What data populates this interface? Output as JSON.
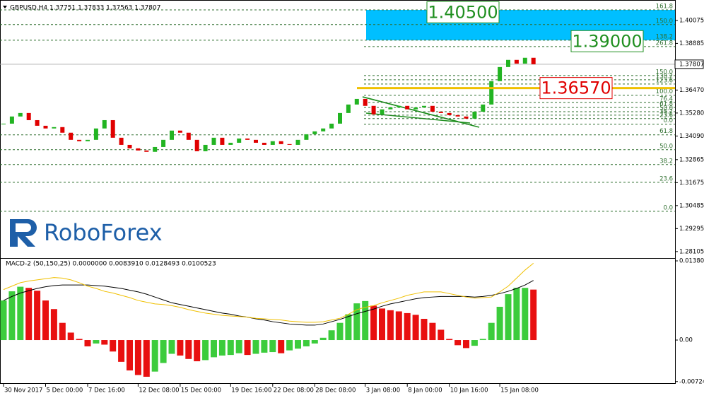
{
  "header": "GBPUSD,H4  1.37751 1.37833 1.37563 1.37807",
  "logo": "RoboForex",
  "chart_data": [
    {
      "type": "candlestick",
      "categories": [
        "30 Nov 2017",
        null,
        null,
        null,
        null,
        "5 Dec 00:00",
        null,
        null,
        null,
        null,
        "7 Dec 16:00",
        null,
        null,
        null,
        null,
        null,
        "12 Dec 08:00",
        null,
        null,
        null,
        null,
        "15 Dec 00:00",
        null,
        null,
        null,
        null,
        null,
        "19 Dec 16:00",
        null,
        null,
        null,
        null,
        "22 Dec 08:00",
        null,
        null,
        null,
        null,
        "28 Dec 08:00",
        null,
        null,
        null,
        null,
        null,
        "3 Jan 08:00",
        null,
        null,
        null,
        null,
        "8 Jan 00:00",
        null,
        null,
        null,
        null,
        "10 Jan 16:00",
        null,
        null,
        null,
        null,
        null,
        "15 Jan 08:00",
        null,
        null,
        null,
        null
      ],
      "values": [
        1.3473,
        1.351,
        1.3528,
        1.3491,
        1.3462,
        1.3448,
        1.3455,
        1.3426,
        1.3389,
        1.3382,
        1.3389,
        1.3448,
        1.3491,
        1.34,
        1.3363,
        1.3345,
        1.3334,
        1.3327,
        1.3352,
        1.3389,
        1.3437,
        1.3426,
        1.3389,
        1.333,
        1.3363,
        1.34,
        1.3363,
        1.3374,
        1.3396,
        1.3389,
        1.3374,
        1.3363,
        1.3382,
        1.3367,
        1.3363,
        1.3389,
        1.3418,
        1.3433,
        1.3448,
        1.3473,
        1.3528,
        1.3572,
        1.3601,
        1.3565,
        1.3521,
        1.3547,
        1.3557,
        1.3565,
        1.3547,
        1.3557,
        1.3565,
        1.3535,
        1.3528,
        1.3517,
        1.351,
        1.3499,
        1.3535,
        1.3572,
        1.3693,
        1.3766,
        1.3803,
        1.3784,
        1.3814,
        1.37807
      ],
      "up_color": "#22b422",
      "down_color": "#e00000",
      "ylim": [
        1.2777,
        1.4095
      ],
      "yticks": [
        1.40075,
        1.38885,
        {
          "value": 1.3647,
          "label": "1.36470"
        },
        {
          "value": 1.3528,
          "label": "1.35280"
        },
        {
          "value": 1.3409,
          "label": "1.34090"
        },
        1.32865,
        1.31675,
        1.30485,
        1.29295,
        1.28105
      ],
      "last_price": {
        "value": 1.37807,
        "label": "1.37807"
      },
      "fib_color": "#2f6f2f",
      "fib_levels_full": [
        {
          "label": "161.8",
          "value": 1.4062
        },
        {
          "label": "150.0",
          "value": 1.3986
        },
        {
          "label": "138.2",
          "value": 1.3905
        },
        {
          "label": "61.8",
          "value": 1.3415
        },
        {
          "label": "50.0",
          "value": 1.3338
        },
        {
          "label": "38.2",
          "value": 1.3261
        },
        {
          "label": "23.6",
          "value": 1.3169
        },
        {
          "label": "0.0",
          "value": 1.3019
        }
      ],
      "fib_levels_recent": [
        {
          "label": "261.8",
          "value": 1.3872
        },
        {
          "label": "150.0",
          "value": 1.3722
        },
        {
          "label": "138.2",
          "value": 1.37
        },
        {
          "label": "123.6",
          "value": 1.3678
        },
        {
          "label": "100.0",
          "value": 1.362
        },
        {
          "label": "76.4",
          "value": 1.3583
        },
        {
          "label": "61.8",
          "value": 1.3557
        },
        {
          "label": "50.0",
          "value": 1.3535
        },
        {
          "label": "38.2",
          "value": 1.3517
        },
        {
          "label": "23.6",
          "value": 1.3499
        },
        {
          "label": "0.0",
          "value": 1.347
        }
      ],
      "target_zone": {
        "color": "#00bfff",
        "values": [
          1.3905,
          1.4062
        ]
      },
      "targets": [
        {
          "value": 1.405,
          "label": "1.40500",
          "color": "#1f8f1f"
        },
        {
          "value": 1.39,
          "label": "1.39000",
          "color": "#1f8f1f"
        },
        {
          "value": 1.3657,
          "label": "1.36570",
          "color": "#e00000",
          "line_color": "#f0c000"
        }
      ]
    },
    {
      "type": "macd",
      "title": "MACD-2 (50,150,25) 0.0000000 0.0083910 0.0128493 0.0100523",
      "histogram": {
        "up_color": "#3ccc3c",
        "down_color": "#e81010",
        "values": [
          0.0069,
          0.0085,
          0.0093,
          0.0091,
          0.0086,
          0.0069,
          0.0054,
          0.003,
          0.0013,
          0.0002,
          -0.0011,
          -0.0006,
          -0.0008,
          -0.002,
          -0.0038,
          -0.0053,
          -0.0061,
          -0.0064,
          -0.0055,
          -0.004,
          -0.0024,
          -0.0027,
          -0.0033,
          -0.0037,
          -0.0035,
          -0.003,
          -0.0027,
          -0.0026,
          -0.0023,
          -0.0026,
          -0.0024,
          -0.0022,
          -0.0021,
          -0.0023,
          -0.0018,
          -0.0015,
          -0.0011,
          -0.0006,
          0.0004,
          0.0017,
          0.003,
          0.0045,
          0.0064,
          0.0068,
          0.006,
          0.0055,
          0.0052,
          0.005,
          0.0047,
          0.0044,
          0.0037,
          0.003,
          0.0018,
          0.0002,
          -0.0009,
          -0.0014,
          -0.001,
          0.0002,
          0.003,
          0.0058,
          0.008,
          0.0091,
          0.0091,
          0.0088
        ]
      },
      "series": [
        {
          "color": "#000000",
          "values": [
            0.0069,
            0.0076,
            0.0082,
            0.0086,
            0.009,
            0.0093,
            0.0095,
            0.0096,
            0.0096,
            0.0096,
            0.0096,
            0.0095,
            0.0094,
            0.0092,
            0.009,
            0.0087,
            0.0084,
            0.008,
            0.0075,
            0.007,
            0.0065,
            0.0062,
            0.0059,
            0.0056,
            0.0053,
            0.005,
            0.0047,
            0.0045,
            0.0042,
            0.004,
            0.0037,
            0.0035,
            0.0032,
            0.003,
            0.0028,
            0.0027,
            0.0026,
            0.0026,
            0.0028,
            0.0032,
            0.0036,
            0.0041,
            0.0046,
            0.005,
            0.0054,
            0.0059,
            0.0063,
            0.0066,
            0.0069,
            0.0072,
            0.0074,
            0.0075,
            0.0076,
            0.0076,
            0.0076,
            0.0076,
            0.0075,
            0.0076,
            0.0078,
            0.0081,
            0.0085,
            0.009,
            0.0096,
            0.0104
          ]
        },
        {
          "color": "#f0c000",
          "values": [
            0.0088,
            0.0094,
            0.01,
            0.0103,
            0.0105,
            0.0107,
            0.0109,
            0.0108,
            0.0105,
            0.01,
            0.0094,
            0.009,
            0.0085,
            0.0082,
            0.0078,
            0.0074,
            0.0069,
            0.0066,
            0.0063,
            0.0062,
            0.006,
            0.0057,
            0.0053,
            0.005,
            0.0047,
            0.0045,
            0.0043,
            0.0042,
            0.0041,
            0.004,
            0.0038,
            0.0037,
            0.0036,
            0.0035,
            0.0033,
            0.0032,
            0.0031,
            0.0031,
            0.0032,
            0.0035,
            0.0038,
            0.0045,
            0.0053,
            0.0057,
            0.006,
            0.0065,
            0.0069,
            0.0073,
            0.0078,
            0.0081,
            0.0084,
            0.0084,
            0.0084,
            0.0081,
            0.0078,
            0.0075,
            0.0073,
            0.0074,
            0.0075,
            0.0084,
            0.0094,
            0.0108,
            0.0122,
            0.0134
          ]
        }
      ],
      "ylim": [
        -0.00764,
        0.01418
      ],
      "yticks": [
        0.013806,
        {
          "value": 0,
          "label": "0.00"
        },
        {
          "value": -0.00724,
          "label": "-0.007240"
        }
      ]
    }
  ]
}
